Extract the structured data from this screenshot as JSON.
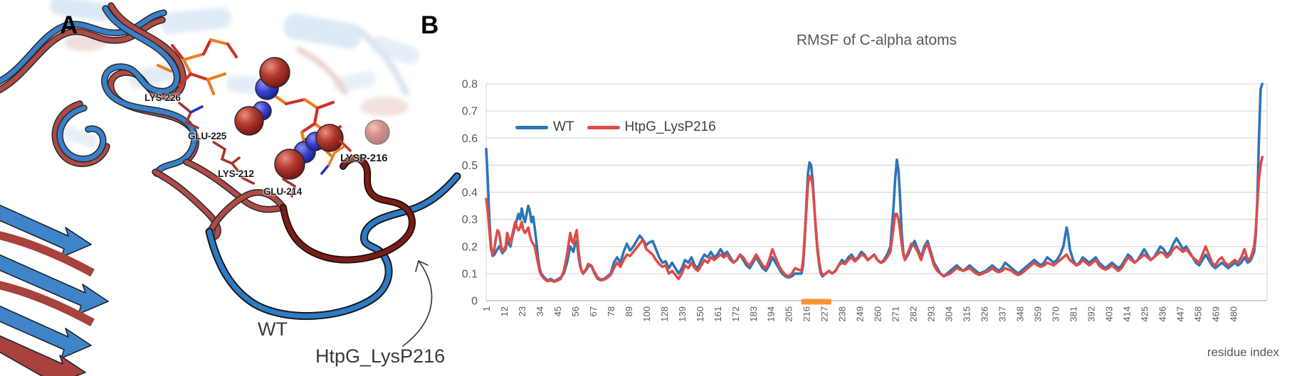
{
  "figure": {
    "panel_a": {
      "panel_letter": "A",
      "residue_labels": [
        {
          "id": "lys226",
          "text": "LYS-226"
        },
        {
          "id": "glu225",
          "text": "GLU-225"
        },
        {
          "id": "lys212",
          "text": "LYS-212"
        },
        {
          "id": "glu214",
          "text": "GLU-214"
        },
        {
          "id": "lysp216",
          "text": "LYSP-216"
        }
      ],
      "wt_label": "WT",
      "mutant_label": "HtpG_LysP216",
      "colors": {
        "wt_ribbon": "#3A80C8",
        "mutant_ribbon": "#B04A45",
        "mutant_loop": "#7A1D16"
      }
    },
    "panel_b": {
      "panel_letter": "B",
      "chart_title": "RMSF of C-alpha atoms",
      "x_axis_label": "residue index",
      "legend": [
        {
          "label": "WT",
          "color": "#2E75B6"
        },
        {
          "label": "HtpG_LysP216",
          "color": "#DE4C48"
        }
      ]
    }
  },
  "chart_data": {
    "type": "line",
    "title": "RMSF of C-alpha atoms",
    "xlabel": "residue index",
    "ylabel": "",
    "ylim": [
      0,
      0.8
    ],
    "grid": true,
    "legend_position": "upper-left-inside",
    "y_tick_labels": [
      "0",
      "0.1",
      "0.2",
      "0.3",
      "0.4",
      "0.5",
      "0.6",
      "0.7",
      "0.8"
    ],
    "x_tick_labels": [
      "1",
      "12",
      "23",
      "34",
      "45",
      "56",
      "67",
      "78",
      "89",
      "100",
      "128",
      "139",
      "150",
      "161",
      "172",
      "183",
      "194",
      "205",
      "216",
      "227",
      "238",
      "249",
      "260",
      "271",
      "282",
      "293",
      "304",
      "315",
      "326",
      "337",
      "348",
      "359",
      "370",
      "381",
      "392",
      "403",
      "414",
      "425",
      "436",
      "447",
      "458",
      "469",
      "480"
    ],
    "highlight_region": {
      "color": "#F79431",
      "from_label": "216",
      "to_label": "227"
    },
    "series": [
      {
        "name": "WT",
        "color": "#2E75B6"
      },
      {
        "name": "HtpG_LysP216",
        "color": "#DE4C48"
      }
    ],
    "points": [
      [
        1,
        0.56,
        0.375
      ],
      [
        2,
        0.44,
        0.33
      ],
      [
        3,
        0.3,
        0.26
      ],
      [
        4,
        0.2,
        0.19
      ],
      [
        5,
        0.165,
        0.17
      ],
      [
        6,
        0.17,
        0.19
      ],
      [
        7,
        0.18,
        0.23
      ],
      [
        8,
        0.19,
        0.26
      ],
      [
        9,
        0.2,
        0.25
      ],
      [
        10,
        0.19,
        0.21
      ],
      [
        11,
        0.175,
        0.18
      ],
      [
        13,
        0.19,
        0.2
      ],
      [
        14,
        0.22,
        0.25
      ],
      [
        16,
        0.2,
        0.21
      ],
      [
        17,
        0.23,
        0.24
      ],
      [
        19,
        0.28,
        0.29
      ],
      [
        20,
        0.3,
        0.27
      ],
      [
        21,
        0.32,
        0.26
      ],
      [
        22,
        0.3,
        0.27
      ],
      [
        23,
        0.34,
        0.29
      ],
      [
        24,
        0.31,
        0.26
      ],
      [
        25,
        0.29,
        0.25
      ],
      [
        26,
        0.32,
        0.26
      ],
      [
        27,
        0.35,
        0.27
      ],
      [
        28,
        0.33,
        0.24
      ],
      [
        29,
        0.29,
        0.22
      ],
      [
        30,
        0.31,
        0.21
      ],
      [
        31,
        0.27,
        0.2
      ],
      [
        32,
        0.22,
        0.17
      ],
      [
        33,
        0.16,
        0.14
      ],
      [
        34,
        0.12,
        0.11
      ],
      [
        35,
        0.1,
        0.095
      ],
      [
        37,
        0.085,
        0.08
      ],
      [
        39,
        0.075,
        0.072
      ],
      [
        41,
        0.08,
        0.075
      ],
      [
        43,
        0.072,
        0.07
      ],
      [
        45,
        0.078,
        0.074
      ],
      [
        47,
        0.085,
        0.08
      ],
      [
        49,
        0.1,
        0.11
      ],
      [
        51,
        0.14,
        0.17
      ],
      [
        52,
        0.17,
        0.21
      ],
      [
        53,
        0.2,
        0.25
      ],
      [
        54,
        0.19,
        0.22
      ],
      [
        55,
        0.18,
        0.21
      ],
      [
        56,
        0.21,
        0.24
      ],
      [
        57,
        0.22,
        0.26
      ],
      [
        58,
        0.17,
        0.19
      ],
      [
        59,
        0.13,
        0.14
      ],
      [
        60,
        0.11,
        0.11
      ],
      [
        61,
        0.1,
        0.1
      ],
      [
        63,
        0.115,
        0.12
      ],
      [
        64,
        0.125,
        0.135
      ],
      [
        66,
        0.13,
        0.13
      ],
      [
        68,
        0.105,
        0.1
      ],
      [
        70,
        0.085,
        0.08
      ],
      [
        72,
        0.078,
        0.075
      ],
      [
        74,
        0.08,
        0.078
      ],
      [
        76,
        0.09,
        0.085
      ],
      [
        78,
        0.1,
        0.095
      ],
      [
        80,
        0.14,
        0.12
      ],
      [
        82,
        0.16,
        0.14
      ],
      [
        84,
        0.14,
        0.125
      ],
      [
        86,
        0.18,
        0.15
      ],
      [
        88,
        0.21,
        0.17
      ],
      [
        90,
        0.185,
        0.165
      ],
      [
        92,
        0.2,
        0.18
      ],
      [
        94,
        0.22,
        0.195
      ],
      [
        96,
        0.24,
        0.21
      ],
      [
        98,
        0.225,
        0.225
      ],
      [
        100,
        0.205,
        0.19
      ],
      [
        102,
        0.215,
        0.18
      ],
      [
        104,
        0.22,
        0.17
      ],
      [
        106,
        0.19,
        0.15
      ],
      [
        108,
        0.16,
        0.135
      ],
      [
        110,
        0.14,
        0.125
      ],
      [
        112,
        0.145,
        0.13
      ],
      [
        114,
        0.12,
        0.1
      ],
      [
        116,
        0.14,
        0.11
      ],
      [
        118,
        0.12,
        0.095
      ],
      [
        120,
        0.1,
        0.08
      ],
      [
        122,
        0.12,
        0.1
      ],
      [
        124,
        0.15,
        0.13
      ],
      [
        126,
        0.14,
        0.12
      ],
      [
        128,
        0.16,
        0.14
      ],
      [
        130,
        0.13,
        0.12
      ],
      [
        132,
        0.12,
        0.11
      ],
      [
        134,
        0.15,
        0.13
      ],
      [
        136,
        0.17,
        0.15
      ],
      [
        138,
        0.16,
        0.14
      ],
      [
        140,
        0.18,
        0.16
      ],
      [
        142,
        0.16,
        0.15
      ],
      [
        144,
        0.17,
        0.16
      ],
      [
        146,
        0.19,
        0.17
      ],
      [
        148,
        0.17,
        0.16
      ],
      [
        150,
        0.18,
        0.17
      ],
      [
        152,
        0.16,
        0.15
      ],
      [
        154,
        0.14,
        0.14
      ],
      [
        156,
        0.15,
        0.15
      ],
      [
        158,
        0.17,
        0.17
      ],
      [
        160,
        0.15,
        0.16
      ],
      [
        162,
        0.13,
        0.14
      ],
      [
        164,
        0.12,
        0.13
      ],
      [
        166,
        0.14,
        0.15
      ],
      [
        168,
        0.16,
        0.17
      ],
      [
        170,
        0.14,
        0.15
      ],
      [
        172,
        0.12,
        0.13
      ],
      [
        174,
        0.11,
        0.12
      ],
      [
        176,
        0.13,
        0.15
      ],
      [
        178,
        0.16,
        0.19
      ],
      [
        180,
        0.14,
        0.16
      ],
      [
        182,
        0.12,
        0.13
      ],
      [
        184,
        0.1,
        0.11
      ],
      [
        186,
        0.09,
        0.095
      ],
      [
        188,
        0.085,
        0.09
      ],
      [
        190,
        0.09,
        0.1
      ],
      [
        192,
        0.1,
        0.12
      ],
      [
        194,
        0.1,
        0.115
      ],
      [
        196,
        0.1,
        0.11
      ],
      [
        197,
        0.13,
        0.15
      ],
      [
        198,
        0.22,
        0.24
      ],
      [
        199,
        0.35,
        0.33
      ],
      [
        200,
        0.47,
        0.43
      ],
      [
        201,
        0.51,
        0.46
      ],
      [
        202,
        0.5,
        0.455
      ],
      [
        203,
        0.44,
        0.42
      ],
      [
        204,
        0.34,
        0.34
      ],
      [
        205,
        0.25,
        0.26
      ],
      [
        206,
        0.18,
        0.19
      ],
      [
        207,
        0.13,
        0.14
      ],
      [
        208,
        0.1,
        0.11
      ],
      [
        209,
        0.09,
        0.095
      ],
      [
        211,
        0.1,
        0.1
      ],
      [
        213,
        0.11,
        0.11
      ],
      [
        215,
        0.1,
        0.1
      ],
      [
        217,
        0.11,
        0.11
      ],
      [
        219,
        0.13,
        0.13
      ],
      [
        221,
        0.15,
        0.14
      ],
      [
        223,
        0.14,
        0.135
      ],
      [
        225,
        0.16,
        0.15
      ],
      [
        227,
        0.17,
        0.16
      ],
      [
        229,
        0.15,
        0.145
      ],
      [
        231,
        0.16,
        0.155
      ],
      [
        233,
        0.18,
        0.17
      ],
      [
        235,
        0.17,
        0.165
      ],
      [
        237,
        0.15,
        0.15
      ],
      [
        239,
        0.16,
        0.16
      ],
      [
        241,
        0.17,
        0.17
      ],
      [
        243,
        0.15,
        0.15
      ],
      [
        245,
        0.14,
        0.14
      ],
      [
        247,
        0.15,
        0.145
      ],
      [
        249,
        0.17,
        0.16
      ],
      [
        251,
        0.2,
        0.18
      ],
      [
        253,
        0.35,
        0.27
      ],
      [
        254,
        0.45,
        0.32
      ],
      [
        255,
        0.52,
        0.32
      ],
      [
        256,
        0.48,
        0.3
      ],
      [
        257,
        0.38,
        0.26
      ],
      [
        258,
        0.25,
        0.21
      ],
      [
        259,
        0.18,
        0.17
      ],
      [
        260,
        0.15,
        0.15
      ],
      [
        262,
        0.17,
        0.18
      ],
      [
        264,
        0.2,
        0.21
      ],
      [
        266,
        0.22,
        0.2
      ],
      [
        268,
        0.19,
        0.18
      ],
      [
        270,
        0.16,
        0.15
      ],
      [
        272,
        0.2,
        0.19
      ],
      [
        274,
        0.22,
        0.21
      ],
      [
        276,
        0.18,
        0.17
      ],
      [
        278,
        0.14,
        0.13
      ],
      [
        280,
        0.12,
        0.11
      ],
      [
        282,
        0.1,
        0.1
      ],
      [
        284,
        0.09,
        0.09
      ],
      [
        286,
        0.1,
        0.095
      ],
      [
        288,
        0.11,
        0.1
      ],
      [
        290,
        0.12,
        0.11
      ],
      [
        292,
        0.13,
        0.12
      ],
      [
        294,
        0.12,
        0.115
      ],
      [
        296,
        0.11,
        0.11
      ],
      [
        298,
        0.12,
        0.115
      ],
      [
        300,
        0.13,
        0.12
      ],
      [
        302,
        0.12,
        0.11
      ],
      [
        304,
        0.11,
        0.1
      ],
      [
        306,
        0.1,
        0.095
      ],
      [
        308,
        0.105,
        0.1
      ],
      [
        310,
        0.11,
        0.105
      ],
      [
        312,
        0.12,
        0.11
      ],
      [
        314,
        0.13,
        0.12
      ],
      [
        316,
        0.12,
        0.11
      ],
      [
        318,
        0.11,
        0.105
      ],
      [
        320,
        0.12,
        0.11
      ],
      [
        322,
        0.14,
        0.12
      ],
      [
        324,
        0.13,
        0.115
      ],
      [
        326,
        0.12,
        0.11
      ],
      [
        328,
        0.11,
        0.1
      ],
      [
        330,
        0.1,
        0.095
      ],
      [
        332,
        0.11,
        0.1
      ],
      [
        334,
        0.12,
        0.11
      ],
      [
        336,
        0.13,
        0.12
      ],
      [
        338,
        0.14,
        0.13
      ],
      [
        340,
        0.15,
        0.14
      ],
      [
        342,
        0.14,
        0.13
      ],
      [
        344,
        0.13,
        0.125
      ],
      [
        346,
        0.14,
        0.13
      ],
      [
        348,
        0.16,
        0.14
      ],
      [
        350,
        0.15,
        0.135
      ],
      [
        352,
        0.14,
        0.13
      ],
      [
        354,
        0.15,
        0.14
      ],
      [
        356,
        0.17,
        0.15
      ],
      [
        358,
        0.2,
        0.16
      ],
      [
        360,
        0.27,
        0.17
      ],
      [
        361,
        0.24,
        0.16
      ],
      [
        362,
        0.19,
        0.15
      ],
      [
        364,
        0.15,
        0.14
      ],
      [
        366,
        0.13,
        0.13
      ],
      [
        368,
        0.14,
        0.135
      ],
      [
        370,
        0.16,
        0.15
      ],
      [
        372,
        0.15,
        0.14
      ],
      [
        374,
        0.14,
        0.13
      ],
      [
        376,
        0.15,
        0.14
      ],
      [
        378,
        0.16,
        0.15
      ],
      [
        380,
        0.14,
        0.13
      ],
      [
        382,
        0.13,
        0.12
      ],
      [
        384,
        0.12,
        0.115
      ],
      [
        386,
        0.13,
        0.12
      ],
      [
        388,
        0.14,
        0.13
      ],
      [
        390,
        0.13,
        0.12
      ],
      [
        392,
        0.12,
        0.11
      ],
      [
        394,
        0.13,
        0.12
      ],
      [
        396,
        0.15,
        0.14
      ],
      [
        398,
        0.17,
        0.16
      ],
      [
        400,
        0.16,
        0.15
      ],
      [
        402,
        0.14,
        0.14
      ],
      [
        404,
        0.15,
        0.15
      ],
      [
        406,
        0.17,
        0.16
      ],
      [
        408,
        0.19,
        0.17
      ],
      [
        410,
        0.17,
        0.16
      ],
      [
        412,
        0.15,
        0.15
      ],
      [
        414,
        0.16,
        0.16
      ],
      [
        416,
        0.18,
        0.17
      ],
      [
        418,
        0.2,
        0.18
      ],
      [
        420,
        0.19,
        0.175
      ],
      [
        422,
        0.17,
        0.16
      ],
      [
        424,
        0.18,
        0.17
      ],
      [
        426,
        0.21,
        0.19
      ],
      [
        428,
        0.23,
        0.2
      ],
      [
        430,
        0.21,
        0.19
      ],
      [
        432,
        0.19,
        0.18
      ],
      [
        434,
        0.2,
        0.19
      ],
      [
        436,
        0.18,
        0.175
      ],
      [
        438,
        0.16,
        0.16
      ],
      [
        440,
        0.14,
        0.15
      ],
      [
        442,
        0.13,
        0.14
      ],
      [
        444,
        0.15,
        0.17
      ],
      [
        446,
        0.17,
        0.2
      ],
      [
        448,
        0.15,
        0.17
      ],
      [
        450,
        0.13,
        0.14
      ],
      [
        452,
        0.12,
        0.13
      ],
      [
        454,
        0.13,
        0.15
      ],
      [
        456,
        0.14,
        0.16
      ],
      [
        458,
        0.13,
        0.14
      ],
      [
        460,
        0.12,
        0.13
      ],
      [
        462,
        0.13,
        0.14
      ],
      [
        464,
        0.14,
        0.15
      ],
      [
        466,
        0.13,
        0.14
      ],
      [
        468,
        0.14,
        0.16
      ],
      [
        470,
        0.16,
        0.19
      ],
      [
        472,
        0.14,
        0.15
      ],
      [
        474,
        0.15,
        0.16
      ],
      [
        476,
        0.18,
        0.2
      ],
      [
        477,
        0.24,
        0.26
      ],
      [
        478,
        0.38,
        0.36
      ],
      [
        479,
        0.6,
        0.45
      ],
      [
        480,
        0.78,
        0.5
      ],
      [
        481,
        0.8,
        0.53
      ]
    ]
  }
}
